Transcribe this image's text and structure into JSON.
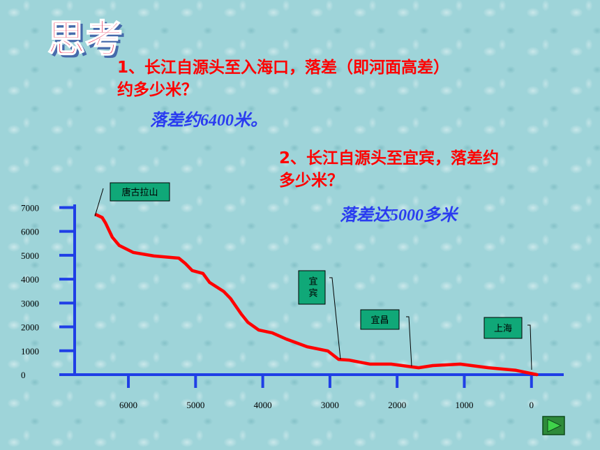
{
  "slide": {
    "heading": "思考",
    "questions": [
      {
        "lines": [
          "1、长江自源头至入海口，落差（即河面高差）",
          "约多少米？"
        ],
        "answer": "落差约6400米。"
      },
      {
        "lines": [
          "2、长江自源头至宜宾，落差约",
          "多少米？"
        ],
        "answer": "落差达5000多米"
      }
    ]
  },
  "chart_data": {
    "type": "line",
    "color": "#ff0000",
    "x": [
      6480,
      6390,
      6340,
      6240,
      6135,
      5930,
      5620,
      5250,
      5150,
      5050,
      4890,
      4790,
      4580,
      4480,
      4320,
      4220,
      4060,
      3860,
      3650,
      3340,
      3030,
      2870,
      2720,
      2400,
      2090,
      1680,
      1470,
      1060,
      640,
      230,
      -80
    ],
    "values": [
      6700,
      6580,
      6350,
      5760,
      5410,
      5120,
      4970,
      4880,
      4650,
      4360,
      4240,
      3860,
      3480,
      3190,
      2540,
      2190,
      1870,
      1750,
      1490,
      1170,
      990,
      640,
      610,
      440,
      440,
      290,
      380,
      440,
      290,
      180,
      0
    ],
    "xlim": [
      6800,
      -480
    ],
    "ylim": [
      0,
      7130
    ],
    "xticks": [
      6000,
      5000,
      4000,
      3000,
      2000,
      1000,
      0
    ],
    "yticks": [
      7000,
      6000,
      5000,
      4000,
      3000,
      2000,
      1000,
      0
    ],
    "annotations": [
      "唐古拉山",
      "宜宾",
      "宜昌",
      "上海"
    ]
  }
}
